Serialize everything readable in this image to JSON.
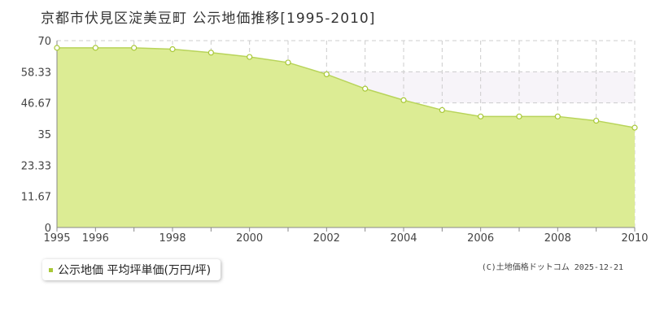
{
  "title": "京都市伏見区淀美豆町 公示地価推移[1995-2010]",
  "legend": {
    "label": "公示地価 平均坪単価(万円/坪)"
  },
  "credit": "(C)土地価格ドットコム 2025-12-21",
  "colors": {
    "area_fill": "#dcec94",
    "line": "#b8d45a",
    "point_fill": "#ffffff",
    "point_stroke": "#a8c837",
    "grid": "#cccccc",
    "highlight_band": "#f7f4f9",
    "axis": "#888888"
  },
  "chart_data": {
    "type": "area",
    "title": "京都市伏見区淀美豆町 公示地価推移[1995-2010]",
    "xlabel": "",
    "ylabel": "",
    "x": [
      1995,
      1996,
      1997,
      1998,
      1999,
      2000,
      2001,
      2002,
      2003,
      2004,
      2005,
      2006,
      2007,
      2008,
      2009,
      2010
    ],
    "xlim": [
      1995,
      2010
    ],
    "ylim": [
      0,
      70
    ],
    "yticks": [
      0,
      11.67,
      23.33,
      35,
      46.67,
      58.33,
      70
    ],
    "ytick_labels": [
      "0",
      "11.67",
      "23.33",
      "35",
      "46.67",
      "58.33",
      "70"
    ],
    "xticks": [
      1995,
      1996,
      1998,
      2000,
      2002,
      2004,
      2006,
      2008,
      2010
    ],
    "xtick_labels": [
      "1995",
      "1996",
      "1998",
      "2000",
      "2002",
      "2004",
      "2006",
      "2008",
      "2010"
    ],
    "grid": true,
    "legend_position": "bottom-left",
    "highlight_band": [
      46.67,
      58.33
    ],
    "series": [
      {
        "name": "公示地価 平均坪単価(万円/坪)",
        "values": [
          67.3,
          67.3,
          67.3,
          66.8,
          65.5,
          63.9,
          61.8,
          57.4,
          52.0,
          47.7,
          44.0,
          41.6,
          41.6,
          41.6,
          40.0,
          37.4
        ]
      }
    ]
  }
}
